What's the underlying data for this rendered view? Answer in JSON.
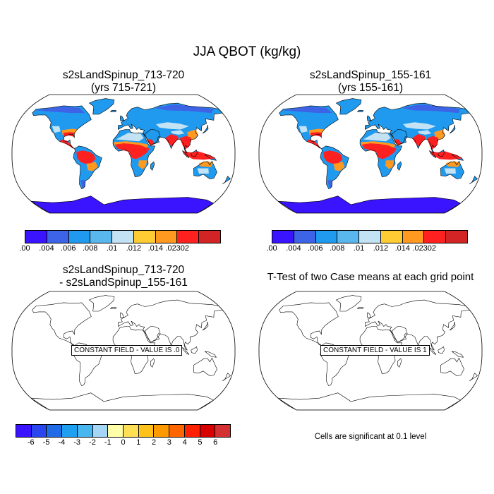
{
  "figure_title": "JJA QBOT (kg/kg)",
  "panels": {
    "top_left": {
      "title_line1": "s2sLandSpinup_713-720",
      "title_line2": "(yrs 715-721)"
    },
    "top_right": {
      "title_line1": "s2sLandSpinup_155-161",
      "title_line2": "(yrs 155-161)"
    },
    "bottom_left": {
      "title_line1": "s2sLandSpinup_713-720",
      "title_line2": "- s2sLandSpinup_155-161",
      "constant_label": "CONSTANT FIELD - VALUE IS .0"
    },
    "bottom_right": {
      "title": "T-Test of two Case means at each grid point",
      "constant_label": "CONSTANT FIELD - VALUE IS 1",
      "note": "Cells are significant at 0.1 level"
    }
  },
  "colorbars": {
    "top": {
      "colors": [
        "#3a14ff",
        "#3d63e6",
        "#1f9aee",
        "#5ab7ee",
        "#c3e3f5",
        "#ffcc33",
        "#ff9920",
        "#ff2020",
        "#d22424"
      ],
      "labels": [
        ".00",
        ".004",
        ".006",
        ".008",
        ".01",
        ".012",
        ".014",
        ".02302"
      ]
    },
    "bottom": {
      "colors": [
        "#3a14ff",
        "#2a46ee",
        "#1f6ce6",
        "#1ea0f0",
        "#48b6ee",
        "#a6d6f5",
        "#ffffaa",
        "#ffe055",
        "#ffc21a",
        "#ff9900",
        "#ff6600",
        "#ff2200",
        "#d90000",
        "#d43232"
      ],
      "labels": [
        "-6",
        "-5",
        "-4",
        "-3",
        "-2",
        "-1",
        "0",
        "1",
        "2",
        "3",
        "4",
        "5",
        "6"
      ]
    }
  },
  "chart_data": [
    {
      "type": "heatmap",
      "title": "s2sLandSpinup_713-720 (yrs 715-721)",
      "variable": "JJA QBOT (kg/kg)",
      "projection": "Robinson",
      "levels": [
        0.0,
        0.004,
        0.006,
        0.008,
        0.01,
        0.012,
        0.014,
        0.02302
      ],
      "range": [
        0.0,
        0.02302
      ]
    },
    {
      "type": "heatmap",
      "title": "s2sLandSpinup_155-161 (yrs 155-161)",
      "variable": "JJA QBOT (kg/kg)",
      "projection": "Robinson",
      "levels": [
        0.0,
        0.004,
        0.006,
        0.008,
        0.01,
        0.012,
        0.014,
        0.02302
      ],
      "range": [
        0.0,
        0.02302
      ]
    },
    {
      "type": "heatmap",
      "title": "s2sLandSpinup_713-720 - s2sLandSpinup_155-161",
      "constant_value": 0.0,
      "levels": [
        -6,
        -5,
        -4,
        -3,
        -2,
        -1,
        0,
        1,
        2,
        3,
        4,
        5,
        6
      ]
    },
    {
      "type": "heatmap",
      "title": "T-Test of two Case means at each grid point",
      "constant_value": 1,
      "significance_level": 0.1
    }
  ]
}
